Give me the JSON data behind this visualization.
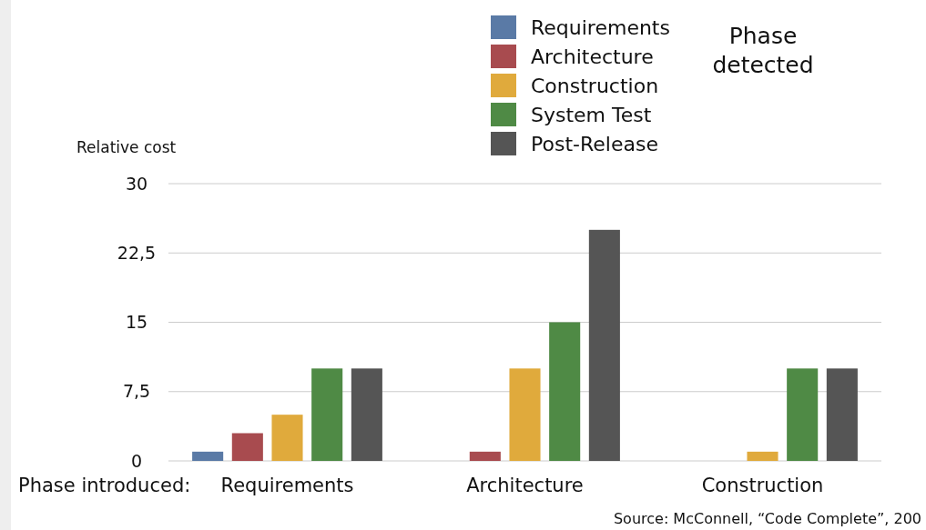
{
  "chart_data": {
    "type": "bar",
    "ylabel": "Relative cost",
    "xlabel": "Phase introduced:",
    "legend_title": "Phase detected",
    "categories": [
      "Requirements",
      "Architecture",
      "Construction"
    ],
    "series": [
      {
        "name": "Requirements",
        "color": "#5a7aa6",
        "values": [
          1,
          null,
          null
        ]
      },
      {
        "name": "Architecture",
        "color": "#a84b4f",
        "values": [
          3,
          1,
          null
        ]
      },
      {
        "name": "Construction",
        "color": "#e0aa3c",
        "values": [
          5,
          10,
          1
        ]
      },
      {
        "name": "System Test",
        "color": "#4f8a45",
        "values": [
          10,
          15,
          10
        ]
      },
      {
        "name": "Post-Release",
        "color": "#555555",
        "values": [
          10,
          25,
          10
        ]
      }
    ],
    "ylim": [
      0,
      30
    ],
    "yticks": [
      0,
      {
        "value": 7.5,
        "label": "7,5"
      },
      15,
      {
        "value": 22.5,
        "label": "22,5"
      },
      30
    ],
    "grid": "y",
    "legend": "top",
    "annotations": [
      "Source: McConnell, “Code Complete”, 200"
    ]
  }
}
